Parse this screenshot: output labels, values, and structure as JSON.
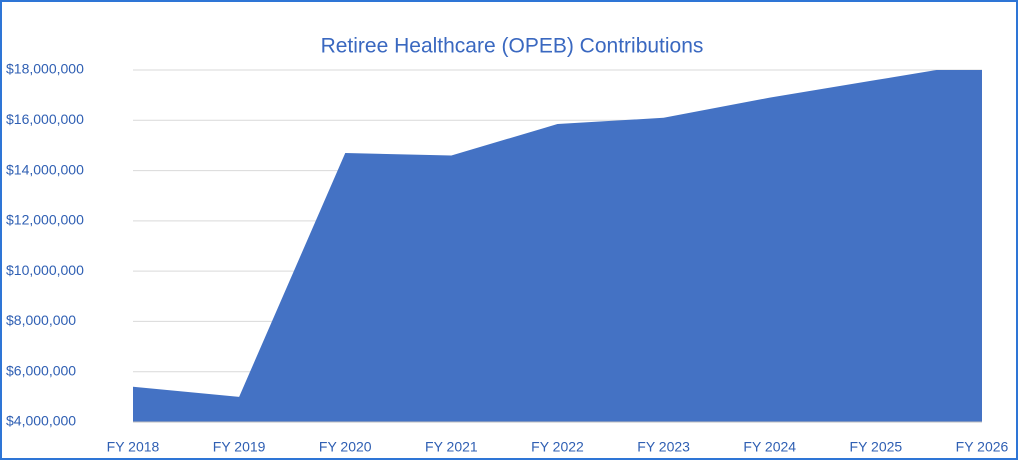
{
  "chart_data": {
    "type": "area",
    "title": "Retiree Healthcare (OPEB) Contributions",
    "categories": [
      "FY 2018",
      "FY 2019",
      "FY 2020",
      "FY 2021",
      "FY 2022",
      "FY 2023",
      "FY 2024",
      "FY 2025",
      "FY 2026"
    ],
    "values": [
      5400000,
      5000000,
      14700000,
      14600000,
      15850000,
      16100000,
      16900000,
      17600000,
      18300000
    ],
    "color": "#4472c4",
    "ylim": [
      4000000,
      18000000
    ],
    "yticks": [
      {
        "value": 4000000,
        "label": "$4,000,000"
      },
      {
        "value": 6000000,
        "label": "$6,000,000"
      },
      {
        "value": 8000000,
        "label": "$8,000,000"
      },
      {
        "value": 10000000,
        "label": "$10,000,000"
      },
      {
        "value": 12000000,
        "label": "$12,000,000"
      },
      {
        "value": 14000000,
        "label": "$14,000,000"
      },
      {
        "value": 16000000,
        "label": "$16,000,000"
      },
      {
        "value": 18000000,
        "label": "$18,000,000"
      }
    ],
    "grid": true
  }
}
